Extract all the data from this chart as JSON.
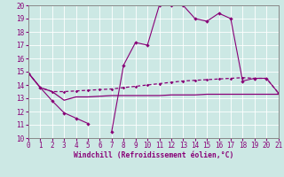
{
  "xlabel": "Windchill (Refroidissement éolien,°C)",
  "background_color": "#cce8e4",
  "line_color": "#880077",
  "xmin": 0,
  "xmax": 21,
  "ymin": 10,
  "ymax": 20,
  "line_spiky_x": [
    0,
    1,
    2,
    3,
    4,
    5,
    6,
    7,
    8,
    9,
    10,
    11,
    12,
    13,
    14,
    15,
    16,
    17,
    18,
    19,
    20,
    21
  ],
  "line_spiky_y": [
    14.9,
    13.8,
    12.8,
    11.9,
    11.5,
    11.1,
    null,
    10.5,
    15.5,
    17.2,
    17.0,
    20.0,
    20.0,
    20.0,
    19.0,
    18.8,
    19.4,
    19.0,
    14.3,
    14.5,
    14.5,
    13.4
  ],
  "line_upper_x": [
    0,
    1,
    2,
    3,
    4,
    5,
    6,
    7,
    8,
    9,
    10,
    11,
    12,
    13,
    14,
    15,
    16,
    17,
    18,
    19,
    20,
    21
  ],
  "line_upper_y": [
    14.9,
    13.8,
    13.5,
    13.5,
    13.55,
    13.6,
    13.65,
    13.7,
    13.8,
    13.9,
    14.0,
    14.1,
    14.2,
    14.3,
    14.35,
    14.4,
    14.45,
    14.5,
    14.55,
    14.5,
    14.5,
    13.4
  ],
  "line_lower_x": [
    0,
    1,
    2,
    3,
    4,
    5,
    6,
    7,
    8,
    9,
    10,
    11,
    12,
    13,
    14,
    15,
    16,
    17,
    18,
    19,
    20,
    21
  ],
  "line_lower_y": [
    14.9,
    13.8,
    13.5,
    12.85,
    13.1,
    13.1,
    13.15,
    13.2,
    13.2,
    13.2,
    13.2,
    13.2,
    13.25,
    13.25,
    13.25,
    13.3,
    13.3,
    13.3,
    13.3,
    13.3,
    13.3,
    13.3
  ]
}
